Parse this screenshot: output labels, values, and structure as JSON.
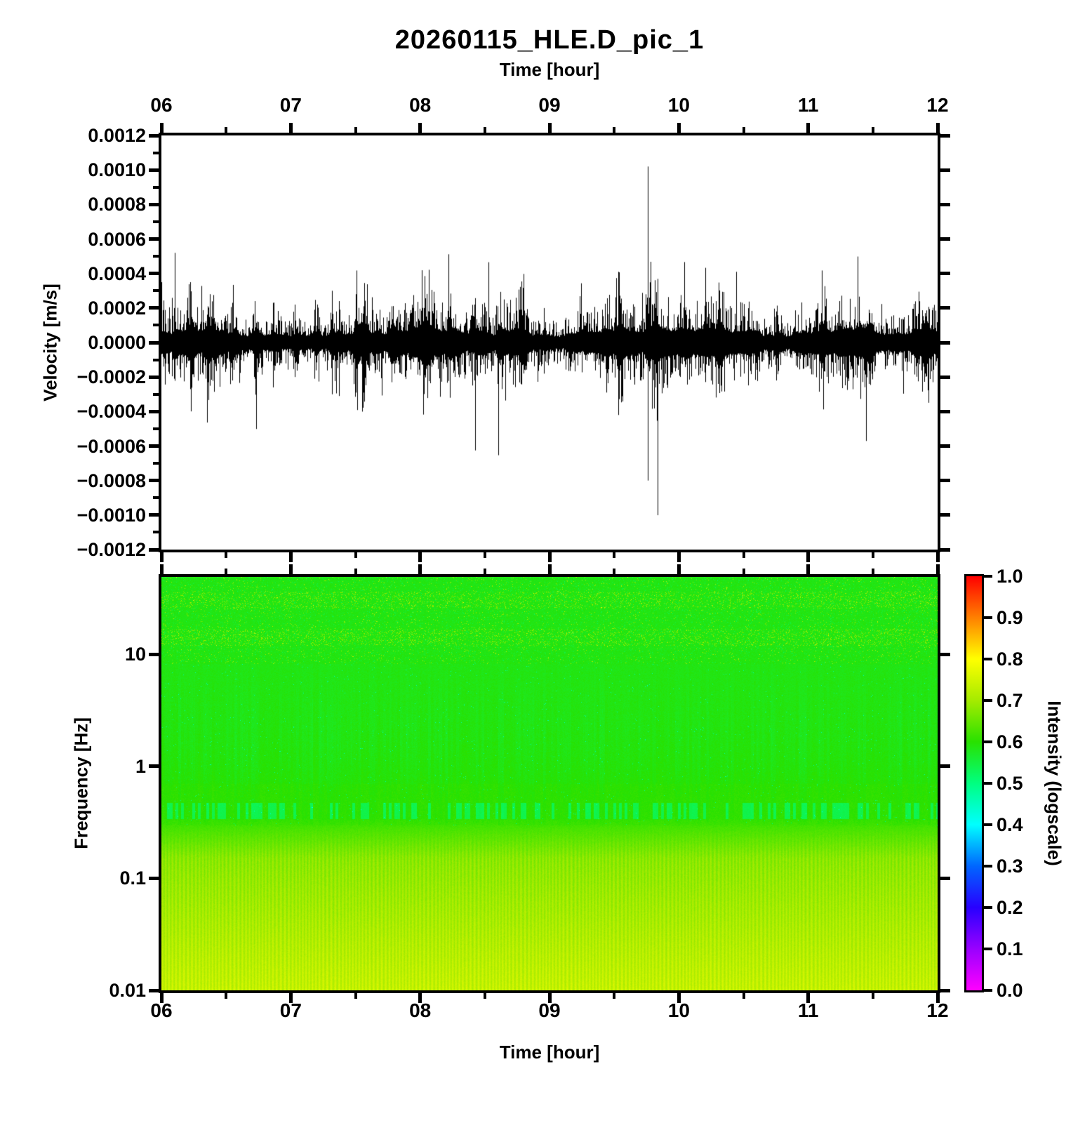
{
  "title": "20260115_HLE.D_pic_1",
  "waveform_panel": {
    "xlabel": "Time [hour]",
    "ylabel": "Velocity [m/s]",
    "x_tick_labels": [
      "06",
      "07",
      "08",
      "09",
      "10",
      "11",
      "12"
    ],
    "y_tick_labels": [
      "0.0012",
      "0.0010",
      "0.0008",
      "0.0006",
      "0.0004",
      "0.0002",
      "0.0000",
      "−0.0002",
      "−0.0004",
      "−0.0006",
      "−0.0008",
      "−0.0010",
      "−0.0012"
    ]
  },
  "spectrogram_panel": {
    "xlabel": "Time [hour]",
    "ylabel": "Frequency [Hz]",
    "x_tick_labels": [
      "06",
      "07",
      "08",
      "09",
      "10",
      "11",
      "12"
    ],
    "y_tick_labels": [
      "10",
      "1",
      "0.1",
      "0.01"
    ]
  },
  "colorbar": {
    "label": "Intensity (logscale)",
    "tick_labels": [
      "1.0",
      "0.9",
      "0.8",
      "0.7",
      "0.6",
      "0.5",
      "0.4",
      "0.3",
      "0.2",
      "0.1",
      "0.0"
    ],
    "stops": [
      [
        0.0,
        255,
        0,
        255
      ],
      [
        0.1,
        153,
        0,
        255
      ],
      [
        0.2,
        40,
        0,
        255
      ],
      [
        0.3,
        0,
        102,
        255
      ],
      [
        0.4,
        0,
        255,
        255
      ],
      [
        0.5,
        0,
        255,
        128
      ],
      [
        0.6,
        40,
        225,
        0
      ],
      [
        0.7,
        165,
        235,
        0
      ],
      [
        0.8,
        255,
        255,
        0
      ],
      [
        0.9,
        255,
        128,
        0
      ],
      [
        1.0,
        255,
        0,
        0
      ]
    ]
  },
  "chart_data": [
    {
      "type": "line",
      "title": "20260115_HLE.D_pic_1",
      "xlabel": "Time [hour]",
      "ylabel": "Velocity [m/s]",
      "xlim": [
        6,
        12
      ],
      "ylim": [
        -0.0012,
        0.0012
      ],
      "y_tick_step": 0.0002,
      "line_color": "#000000",
      "background_noise_band_mps": 6e-05,
      "events": [
        {
          "hour": 6.1,
          "up": 0.0002,
          "down": 0.00021
        },
        {
          "hour": 6.22,
          "up": 0.00035,
          "down": 0.00027
        },
        {
          "hour": 6.36,
          "up": 0.00021,
          "down": 0.00023
        },
        {
          "hour": 6.55,
          "up": 0.00023,
          "down": 0.00022
        },
        {
          "hour": 6.72,
          "up": 0.00024,
          "down": 0.00021
        },
        {
          "hour": 6.86,
          "up": 0.00023,
          "down": 0.00026
        },
        {
          "hour": 7.03,
          "up": 0.00022,
          "down": 0.0002
        },
        {
          "hour": 7.18,
          "up": 0.00019,
          "down": 0.00021
        },
        {
          "hour": 7.32,
          "up": 0.0003,
          "down": 0.0003
        },
        {
          "hour": 7.37,
          "up": 0.00024,
          "down": 0.00031
        },
        {
          "hour": 7.5,
          "up": 0.00028,
          "down": 0.00029
        },
        {
          "hour": 7.56,
          "up": 0.00021,
          "down": 0.00029
        },
        {
          "hour": 7.78,
          "up": 0.00021,
          "down": 0.00023
        },
        {
          "hour": 8.03,
          "up": 0.0002,
          "down": 0.00021
        },
        {
          "hour": 8.23,
          "up": 0.00021,
          "down": 0.00032
        },
        {
          "hour": 8.42,
          "up": 0.00022,
          "down": 0.00022
        },
        {
          "hour": 8.6,
          "up": 0.00021,
          "down": 0.00024
        },
        {
          "hour": 8.78,
          "up": 0.00019,
          "down": 0.00019
        },
        {
          "hour": 9.53,
          "up": 0.00041,
          "down": 0.00042
        },
        {
          "hour": 9.76,
          "up": 0.00102,
          "down": 0.0008
        },
        {
          "hour": 9.82,
          "up": 0.0002,
          "down": 0.00026
        },
        {
          "hour": 10.3,
          "up": 0.00019,
          "down": 0.00024
        },
        {
          "hour": 10.75,
          "up": 0.00018,
          "down": 0.00022
        },
        {
          "hour": 11.1,
          "up": 0.00017,
          "down": 0.00018
        },
        {
          "hour": 11.47,
          "up": 0.00019,
          "down": 0.00024
        },
        {
          "hour": 11.9,
          "up": 0.00017,
          "down": 0.00018
        }
      ]
    },
    {
      "type": "heatmap",
      "xlabel": "Time [hour]",
      "ylabel": "Frequency [Hz]",
      "xlim": [
        6,
        12
      ],
      "ylim_hz": [
        0.01,
        50
      ],
      "y_scale": "log",
      "colormap": "rainbow (magenta-blue-cyan-green-yellow-red)",
      "intensity_label": "Intensity (logscale)",
      "intensity_range": [
        0.0,
        1.0
      ],
      "bands": [
        {
          "freq_hz": [
            10,
            50
          ],
          "intensity": 0.585,
          "texture": "green with fine speckle; yellowish dotted rows near 30 Hz and 14 Hz"
        },
        {
          "freq_hz": [
            0.6,
            10
          ],
          "intensity": 0.6,
          "texture": "green with dark-green vertical striations and sparse teal dots"
        },
        {
          "freq_hz": [
            0.3,
            0.6
          ],
          "intensity": 0.615,
          "texture": "dark-green vertical dashes near 0.4 Hz"
        },
        {
          "freq_hz": [
            0.01,
            0.3
          ],
          "intensity": 0.7,
          "texture": "yellow-green with fine vertical yellow stripes, brighter toward bottom"
        }
      ]
    }
  ]
}
